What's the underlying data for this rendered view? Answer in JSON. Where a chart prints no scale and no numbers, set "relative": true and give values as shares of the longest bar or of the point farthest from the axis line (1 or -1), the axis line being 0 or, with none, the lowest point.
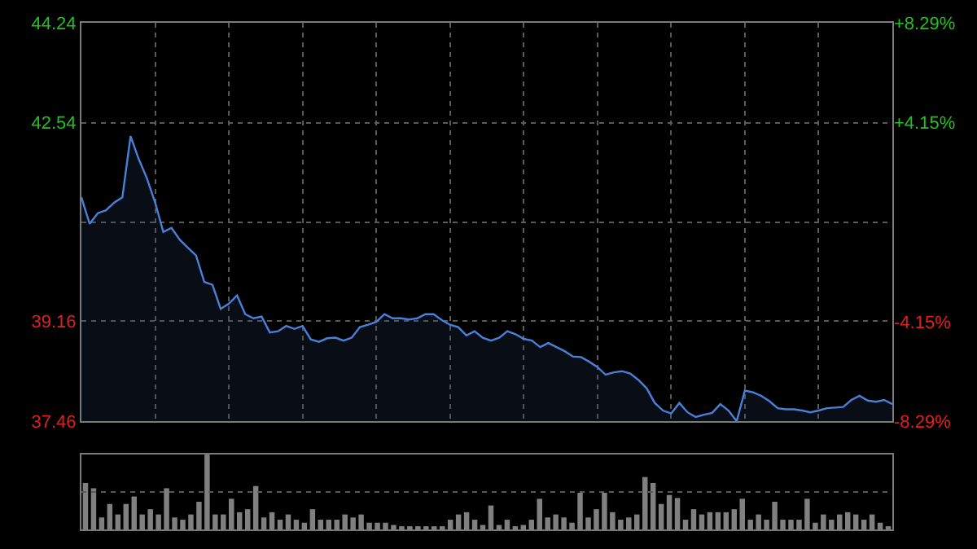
{
  "chart_data": [
    {
      "type": "area",
      "tick_labels": "y",
      "grid": true,
      "categories": [
        null,
        null,
        null,
        null,
        null,
        null,
        null,
        null,
        null,
        null,
        null,
        null,
        null,
        null,
        null,
        null,
        null,
        null,
        null,
        null,
        null,
        null,
        null,
        null,
        null,
        null,
        null,
        null,
        null,
        null,
        null,
        null,
        null,
        null,
        null,
        null,
        null,
        null,
        null,
        null,
        null,
        null,
        null,
        null,
        null,
        null,
        null,
        null,
        null,
        null,
        null,
        null,
        null,
        null,
        null,
        null,
        null,
        null,
        null,
        null,
        null,
        null,
        null,
        null,
        null,
        null,
        null,
        null,
        null,
        null,
        null,
        null,
        null,
        null,
        null,
        null,
        null,
        null,
        null,
        null,
        null,
        null,
        null,
        null,
        null,
        null,
        null,
        null,
        null,
        null,
        null,
        null,
        null,
        null,
        null,
        null,
        null,
        null,
        null,
        null
      ],
      "series": [
        {
          "color": "#4a80d8",
          "values": [
            41.27,
            40.82,
            41.0,
            41.05,
            41.18,
            41.27,
            42.31,
            41.92,
            41.59,
            41.18,
            40.68,
            40.75,
            40.55,
            40.41,
            40.28,
            39.83,
            39.78,
            39.37,
            39.46,
            39.6,
            39.28,
            39.21,
            39.24,
            38.97,
            38.99,
            39.08,
            39.03,
            39.08,
            38.85,
            38.81,
            38.87,
            38.88,
            38.83,
            38.88,
            39.06,
            39.1,
            39.15,
            39.28,
            39.21,
            39.21,
            39.19,
            39.21,
            39.28,
            39.28,
            39.18,
            39.1,
            39.06,
            38.92,
            38.99,
            38.88,
            38.83,
            38.88,
            38.99,
            38.94,
            38.86,
            38.83,
            38.72,
            38.79,
            38.72,
            38.65,
            38.56,
            38.55,
            38.47,
            38.38,
            38.25,
            38.29,
            38.31,
            38.27,
            38.16,
            38.02,
            37.77,
            37.64,
            37.59,
            37.77,
            37.61,
            37.53,
            37.57,
            37.6,
            37.75,
            37.64,
            37.46,
            37.98,
            37.95,
            37.89,
            37.8,
            37.68,
            37.66,
            37.66,
            37.64,
            37.61,
            37.64,
            37.68,
            37.69,
            37.7,
            37.82,
            37.89,
            37.81,
            37.79,
            37.82,
            37.75
          ]
        }
      ],
      "ylim": [
        37.46,
        44.24
      ],
      "yticks": [
        44.24,
        42.54,
        {
          "value": 40.85,
          "label": null
        },
        39.16,
        37.46
      ],
      "y2lim": [
        -8.29,
        8.29
      ],
      "y2ticks": [
        {
          "value": 8.29,
          "label": "+8.29%"
        },
        {
          "value": 4.15,
          "label": "+4.15%"
        },
        {
          "value": 0,
          "label": null
        },
        {
          "value": -4.15,
          "label": "-4.15%"
        },
        {
          "value": -8.29,
          "label": "-8.29%"
        }
      ]
    },
    {
      "type": "bar",
      "relative": true,
      "tick_labels": false,
      "color": "#808080",
      "ref_lines": [
        {
          "axis": "y",
          "value": 0.5,
          "color": "#5a5a5a",
          "line_style": "dotted"
        }
      ],
      "categories": [
        null,
        null,
        null,
        null,
        null,
        null,
        null,
        null,
        null,
        null,
        null,
        null,
        null,
        null,
        null,
        null,
        null,
        null,
        null,
        null,
        null,
        null,
        null,
        null,
        null,
        null,
        null,
        null,
        null,
        null,
        null,
        null,
        null,
        null,
        null,
        null,
        null,
        null,
        null,
        null,
        null,
        null,
        null,
        null,
        null,
        null,
        null,
        null,
        null,
        null,
        null,
        null,
        null,
        null,
        null,
        null,
        null,
        null,
        null,
        null,
        null,
        null,
        null,
        null,
        null,
        null,
        null,
        null,
        null,
        null,
        null,
        null,
        null,
        null,
        null,
        null,
        null,
        null,
        null,
        null,
        null,
        null,
        null,
        null,
        null,
        null,
        null,
        null,
        null,
        null,
        null,
        null,
        null,
        null,
        null,
        null,
        null,
        null,
        null,
        null
      ],
      "values": [
        0.62,
        0.55,
        0.16,
        0.34,
        0.2,
        0.34,
        0.44,
        0.2,
        0.27,
        0.2,
        0.55,
        0.16,
        0.13,
        0.2,
        0.37,
        1.0,
        0.2,
        0.2,
        0.41,
        0.23,
        0.27,
        0.58,
        0.16,
        0.23,
        0.13,
        0.2,
        0.13,
        0.09,
        0.27,
        0.13,
        0.13,
        0.13,
        0.2,
        0.16,
        0.2,
        0.09,
        0.09,
        0.09,
        0.06,
        0.04,
        0.04,
        0.04,
        0.04,
        0.04,
        0.04,
        0.13,
        0.2,
        0.23,
        0.13,
        0.06,
        0.32,
        0.06,
        0.13,
        0.04,
        0.06,
        0.13,
        0.41,
        0.16,
        0.2,
        0.16,
        0.09,
        0.49,
        0.16,
        0.27,
        0.49,
        0.23,
        0.13,
        0.16,
        0.2,
        0.7,
        0.62,
        0.34,
        0.46,
        0.42,
        0.13,
        0.27,
        0.2,
        0.23,
        0.23,
        0.23,
        0.27,
        0.41,
        0.13,
        0.2,
        0.13,
        0.37,
        0.13,
        0.13,
        0.13,
        0.41,
        0.09,
        0.2,
        0.13,
        0.2,
        0.23,
        0.2,
        0.13,
        0.2,
        0.09,
        0.04
      ]
    }
  ]
}
